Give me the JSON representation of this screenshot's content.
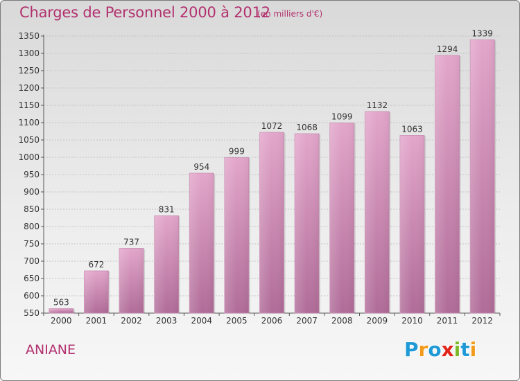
{
  "header": {
    "title": "Charges de Personnel 2000 à 2012",
    "unit_note": "(en milliers d'€)"
  },
  "footer": {
    "place_name": "ANIANE",
    "logo_letters": [
      {
        "char": "P",
        "color": "#1f9ad6"
      },
      {
        "char": "r",
        "color": "#f29a1a"
      },
      {
        "char": "o",
        "color": "#1f9ad6"
      },
      {
        "char": "x",
        "color": "#e2231a"
      },
      {
        "char": "i",
        "color": "#7ab929"
      },
      {
        "char": "t",
        "color": "#1f9ad6"
      },
      {
        "char": "i",
        "color": "#f29a1a"
      }
    ]
  },
  "colors": {
    "accent": "#b2306e",
    "bar_top": "#e3a6cb",
    "bar_bottom": "#b06c98"
  },
  "chart_data": {
    "type": "bar",
    "title": "Charges de Personnel 2000 à 2012",
    "subtitle": "(en milliers d'€)",
    "categories": [
      "2000",
      "2001",
      "2002",
      "2003",
      "2004",
      "2005",
      "2006",
      "2007",
      "2008",
      "2009",
      "2010",
      "2011",
      "2012"
    ],
    "values": [
      563,
      672,
      737,
      831,
      954,
      999,
      1072,
      1068,
      1099,
      1132,
      1063,
      1294,
      1339
    ],
    "ylim": [
      550,
      1350
    ],
    "yticks": [
      550,
      600,
      650,
      700,
      750,
      800,
      850,
      900,
      950,
      1000,
      1050,
      1100,
      1150,
      1200,
      1250,
      1300,
      1350
    ],
    "grid": true,
    "xlabel": "",
    "ylabel": ""
  }
}
